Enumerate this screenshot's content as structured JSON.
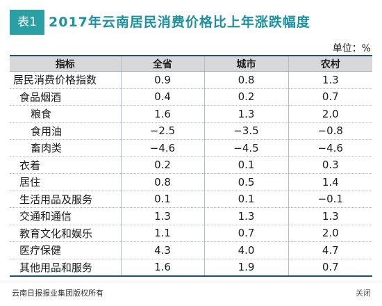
{
  "figure": {
    "badge": "表1",
    "title": "2017年云南居民消费价格比上年涨跌幅度",
    "unit": "单位：%"
  },
  "table": {
    "headers": [
      "指标",
      "全省",
      "城市",
      "农村"
    ],
    "rows": [
      {
        "name": "居民消费价格指数",
        "level": 0,
        "values": [
          "0.9",
          "0.8",
          "1.3"
        ]
      },
      {
        "name": "食品烟酒",
        "level": 1,
        "values": [
          "0.4",
          "0.2",
          "0.7"
        ]
      },
      {
        "name": "粮食",
        "level": 2,
        "values": [
          "1.6",
          "1.3",
          "2.0"
        ]
      },
      {
        "name": "食用油",
        "level": 2,
        "values": [
          "−2.5",
          "−3.5",
          "−0.8"
        ]
      },
      {
        "name": "畜肉类",
        "level": 2,
        "values": [
          "−4.6",
          "−4.5",
          "−4.6"
        ]
      },
      {
        "name": "衣着",
        "level": 1,
        "values": [
          "0.2",
          "0.1",
          "0.3"
        ]
      },
      {
        "name": "居住",
        "level": 1,
        "values": [
          "0.8",
          "0.5",
          "1.4"
        ]
      },
      {
        "name": "生活用品及服务",
        "level": 1,
        "values": [
          "0.1",
          "0.1",
          "−0.1"
        ]
      },
      {
        "name": "交通和通信",
        "level": 1,
        "values": [
          "1.3",
          "1.3",
          "1.3"
        ]
      },
      {
        "name": "教育文化和娱乐",
        "level": 1,
        "values": [
          "1.1",
          "0.7",
          "2.0"
        ]
      },
      {
        "name": "医疗保健",
        "level": 1,
        "values": [
          "4.3",
          "4.0",
          "4.7"
        ]
      },
      {
        "name": "其他用品和服务",
        "level": 1,
        "values": [
          "1.6",
          "1.9",
          "0.7"
        ]
      }
    ]
  },
  "footer": {
    "copyright": "云南日报报业集团版权所有",
    "close_label": "关闭"
  }
}
